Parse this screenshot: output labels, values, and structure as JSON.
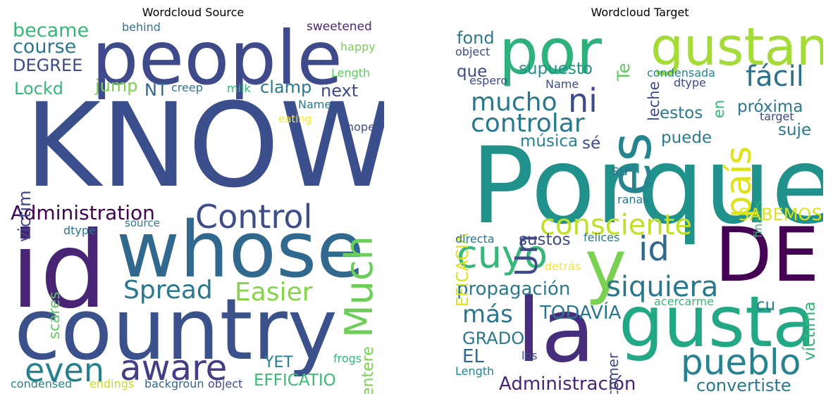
{
  "source": {
    "title": "Wordcloud Source",
    "words": [
      {
        "text": "KNOW",
        "color": "#3b4f8c"
      },
      {
        "text": "people",
        "color": "#3e4a89"
      },
      {
        "text": "id",
        "color": "#482475"
      },
      {
        "text": "whose",
        "color": "#31688e"
      },
      {
        "text": "country",
        "color": "#3b518b"
      },
      {
        "text": "even",
        "color": "#26818e"
      },
      {
        "text": "aware",
        "color": "#433e85"
      },
      {
        "text": "Control",
        "color": "#3e4c8a"
      },
      {
        "text": "Much",
        "color": "#6cce59"
      },
      {
        "text": "Spread",
        "color": "#2a788e"
      },
      {
        "text": "Easier",
        "color": "#86d549"
      },
      {
        "text": "Administration",
        "color": "#440154"
      },
      {
        "text": "became",
        "color": "#35b779"
      },
      {
        "text": "course",
        "color": "#2a788e"
      },
      {
        "text": "DEGREE",
        "color": "#3e4a89"
      },
      {
        "text": "Lockd",
        "color": "#35b779"
      },
      {
        "text": "jump",
        "color": "#7ad151"
      },
      {
        "text": "NT",
        "color": "#31688e"
      },
      {
        "text": "clamp",
        "color": "#2a788e"
      },
      {
        "text": "next",
        "color": "#3e4a89"
      },
      {
        "text": "behind",
        "color": "#2a788e"
      },
      {
        "text": "sweetened",
        "color": "#482878"
      },
      {
        "text": "happy",
        "color": "#7ad151"
      },
      {
        "text": "Length",
        "color": "#5ec962"
      },
      {
        "text": "creep",
        "color": "#2a788e"
      },
      {
        "text": "milk",
        "color": "#35b779"
      },
      {
        "text": "Name",
        "color": "#2a788e"
      },
      {
        "text": "eating",
        "color": "#fde725"
      },
      {
        "text": "hope",
        "color": "#3e4a89"
      },
      {
        "text": "victim",
        "color": "#3e4a89"
      },
      {
        "text": "scares",
        "color": "#5ec962"
      },
      {
        "text": "dtype",
        "color": "#2a788e"
      },
      {
        "text": "source",
        "color": "#2a788e"
      },
      {
        "text": "entere",
        "color": "#7ad151"
      },
      {
        "text": "YET",
        "color": "#26828e"
      },
      {
        "text": "frogs",
        "color": "#35b779"
      },
      {
        "text": "EFFICATIO",
        "color": "#3bbb75"
      },
      {
        "text": "condensed",
        "color": "#26828e"
      },
      {
        "text": "endings",
        "color": "#c2df23"
      },
      {
        "text": "backgroun",
        "color": "#31688e"
      },
      {
        "text": "object",
        "color": "#3e4a89"
      }
    ]
  },
  "target": {
    "title": "Wordcloud Target",
    "words": [
      {
        "text": "Porque",
        "color": "#21918c"
      },
      {
        "text": "por",
        "color": "#2db27d"
      },
      {
        "text": "gustan",
        "color": "#a5db36"
      },
      {
        "text": "es",
        "color": "#25848e"
      },
      {
        "text": "país",
        "color": "#dde318"
      },
      {
        "text": "fácil",
        "color": "#2c728e"
      },
      {
        "text": "ni",
        "color": "#3e4a89"
      },
      {
        "text": "mucho",
        "color": "#2a788e"
      },
      {
        "text": "controlar",
        "color": "#2a788e"
      },
      {
        "text": "DE",
        "color": "#440154"
      },
      {
        "text": "y",
        "color": "#7ad151"
      },
      {
        "text": "id",
        "color": "#31688e"
      },
      {
        "text": "la",
        "color": "#472d7b"
      },
      {
        "text": "gusta",
        "color": "#22a884"
      },
      {
        "text": "pueblo",
        "color": "#26828e"
      },
      {
        "text": "cuyo",
        "color": "#35b779"
      },
      {
        "text": "siquiera",
        "color": "#2a788e"
      },
      {
        "text": "Un",
        "color": "#3e4a89"
      },
      {
        "text": "consciente",
        "color": "#c2df23"
      },
      {
        "text": "propagación",
        "color": "#2a788e"
      },
      {
        "text": "más",
        "color": "#2a788e"
      },
      {
        "text": "TODAVÍA",
        "color": "#2a788e"
      },
      {
        "text": "GRADO",
        "color": "#2a788e"
      },
      {
        "text": "EL",
        "color": "#31688e"
      },
      {
        "text": "Administración",
        "color": "#482475"
      },
      {
        "text": "convertiste",
        "color": "#2a788e"
      },
      {
        "text": "fond",
        "color": "#2a788e"
      },
      {
        "text": "object",
        "color": "#3e4a89"
      },
      {
        "text": "que",
        "color": "#3e4a89"
      },
      {
        "text": "supuesto",
        "color": "#21918c"
      },
      {
        "text": "Te",
        "color": "#5ec962"
      },
      {
        "text": "leche",
        "color": "#3e4a89"
      },
      {
        "text": "condensada",
        "color": "#26828e"
      },
      {
        "text": "dtype",
        "color": "#3e4a89"
      },
      {
        "text": "en",
        "color": "#35b779"
      },
      {
        "text": "espero",
        "color": "#3e4a89"
      },
      {
        "text": "Name",
        "color": "#3e4a89"
      },
      {
        "text": "próxima",
        "color": "#2a788e"
      },
      {
        "text": "target",
        "color": "#3e4a89"
      },
      {
        "text": "estos",
        "color": "#2a788e"
      },
      {
        "text": "suje",
        "color": "#2a788e"
      },
      {
        "text": "puede",
        "color": "#2a788e"
      },
      {
        "text": "música",
        "color": "#26828e"
      },
      {
        "text": "sé",
        "color": "#3e4a89"
      },
      {
        "text": "EFICACIA",
        "color": "#dde318"
      },
      {
        "text": "su",
        "color": "#2a788e"
      },
      {
        "text": "finales",
        "color": "#35b779"
      },
      {
        "text": "ranas",
        "color": "#2a788e"
      },
      {
        "text": "SABEMOS",
        "color": "#dde318"
      },
      {
        "text": "directa",
        "color": "#2a788e"
      },
      {
        "text": "sustos",
        "color": "#3e4a89"
      },
      {
        "text": "felices",
        "color": "#2a788e"
      },
      {
        "text": "víctima",
        "color": "#35b779"
      },
      {
        "text": "detrás",
        "color": "#fde725"
      },
      {
        "text": "cu",
        "color": "#2a788e"
      },
      {
        "text": "acercarme",
        "color": "#35b779"
      },
      {
        "text": "comer",
        "color": "#3e4a89"
      },
      {
        "text": "los",
        "color": "#3e4a89"
      },
      {
        "text": "Length",
        "color": "#26828e"
      }
    ]
  }
}
